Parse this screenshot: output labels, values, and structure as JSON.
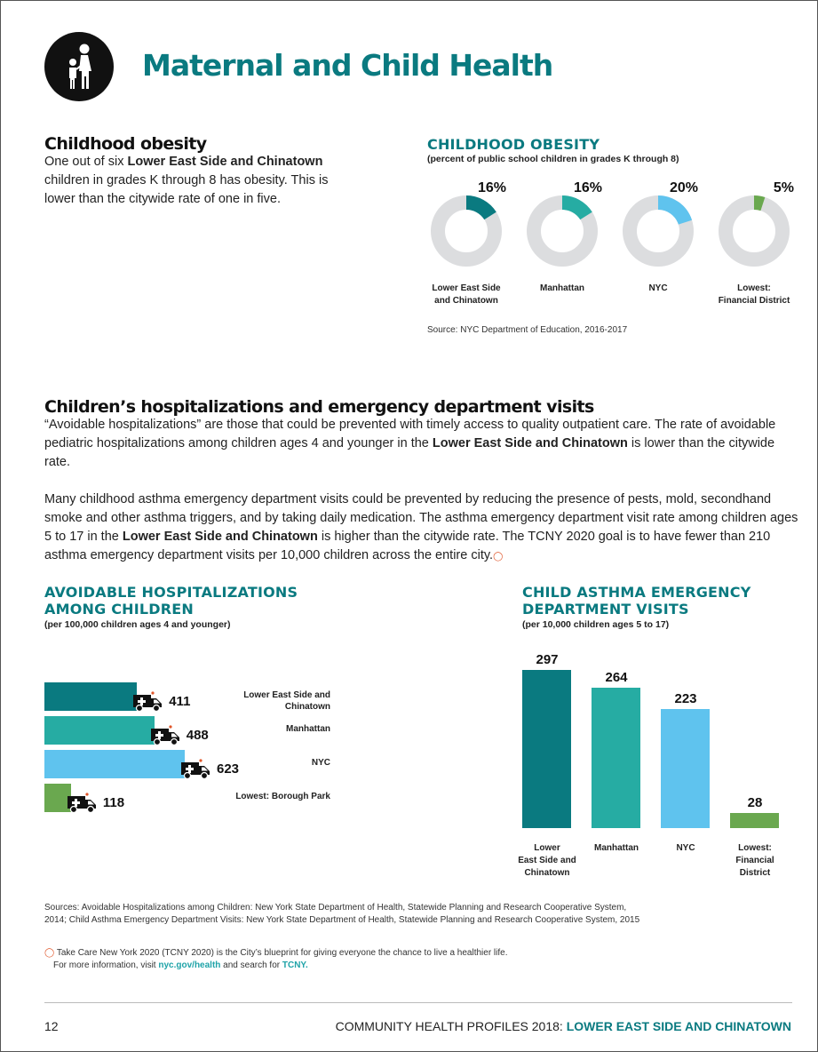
{
  "header": {
    "title": "Maternal and Child Health"
  },
  "obesity_section": {
    "heading": "Childhood obesity",
    "text_pre": "One out of six ",
    "text_bold": "Lower East Side and Chinatown",
    "text_post": " children in grades K through 8 has obesity. This is lower than the citywide rate of one in five."
  },
  "obesity_chart": {
    "title": "CHILDHOOD OBESITY",
    "subtitle": "(percent of public school children in grades K through 8)",
    "source": "Source: NYC Department of Education, 2016-2017",
    "labels": [
      [
        "Lower East Side",
        "and Chinatown"
      ],
      [
        "Manhattan"
      ],
      [
        "NYC"
      ],
      [
        "Lowest:",
        "Financial District"
      ]
    ]
  },
  "hosp_section": {
    "heading": "Children’s hospitalizations and emergency department visits",
    "p1_pre": "“Avoidable hospitalizations” are those that could be prevented with timely access to quality outpatient care. The rate of avoidable pediatric hospitalizations among children ages 4 and younger in the ",
    "p1_bold": "Lower East Side and Chinatown",
    "p1_post": " is lower than the citywide rate.",
    "p2_pre": "Many childhood asthma emergency department visits could be prevented by reducing the presence of pests, mold, secondhand smoke and other asthma triggers, and by taking daily medication. The asthma emergency department visit rate among children ages 5 to 17 in the ",
    "p2_bold": "Lower East Side and Chinatown",
    "p2_post": " is higher than the citywide rate. The TCNY 2020 goal is to have fewer than 210 asthma emergency department visits per 10,000 children across the entire city."
  },
  "hosp_chart": {
    "title_line1": "AVOIDABLE HOSPITALIZATIONS",
    "title_line2": "AMONG CHILDREN",
    "subtitle": "(per 100,000 children ages 4 and younger)",
    "labels": [
      [
        "Lower East Side and",
        "Chinatown"
      ],
      [
        "Manhattan"
      ],
      [
        "NYC"
      ],
      [
        "Lowest: Borough Park"
      ]
    ]
  },
  "asthma_chart": {
    "title_line1": "CHILD ASTHMA EMERGENCY",
    "title_line2": "DEPARTMENT VISITS",
    "subtitle": "(per 10,000 children ages 5 to 17)",
    "labels": [
      [
        "Lower",
        "East Side and",
        "Chinatown"
      ],
      [
        "Manhattan"
      ],
      [
        "NYC"
      ],
      [
        "Lowest:",
        "Financial",
        "District"
      ]
    ]
  },
  "sources": {
    "line1": "Sources: Avoidable Hospitalizations among Children: New York State Department of Health, Statewide Planning and Research Cooperative System,",
    "line2": "2014; Child Asthma Emergency Department Visits: New York State Department of Health, Statewide Planning and Research Cooperative System, 2015"
  },
  "tcny_note": {
    "line1": "Take Care New York 2020 (TCNY 2020) is the City’s blueprint for giving everyone the chance to live a healthier life.",
    "line2_pre": "For more information, visit ",
    "link1": "nyc.gov/health",
    "line2_mid": " and search for ",
    "link2": "TCNY."
  },
  "footer": {
    "page_number": "12",
    "left_text": "COMMUNITY HEALTH PROFILES 2018: ",
    "highlight": "LOWER EAST SIDE AND CHINATOWN"
  },
  "colors": {
    "local": "#0a7a80",
    "manhattan": "#26aca3",
    "nyc": "#5fc3ee",
    "lowest": "#6aa84f",
    "donut_bg": "#dcdddf"
  },
  "chart_data": [
    {
      "type": "pie",
      "title": "CHILDHOOD OBESITY",
      "subtitle": "(percent of public school children in grades K through 8)",
      "categories": [
        "Lower East Side and Chinatown",
        "Manhattan",
        "NYC",
        "Lowest: Financial District"
      ],
      "values": [
        16,
        16,
        20,
        5
      ],
      "value_labels": [
        "16%",
        "16%",
        "20%",
        "5%"
      ]
    },
    {
      "type": "bar",
      "orientation": "horizontal",
      "title": "AVOIDABLE HOSPITALIZATIONS AMONG CHILDREN",
      "subtitle": "(per 100,000 children ages 4 and younger)",
      "categories": [
        "Lower East Side and Chinatown",
        "Manhattan",
        "NYC",
        "Lowest: Borough Park"
      ],
      "values": [
        411,
        488,
        623,
        118
      ],
      "value_labels": [
        "411",
        "488",
        "623",
        "118"
      ]
    },
    {
      "type": "bar",
      "orientation": "vertical",
      "title": "CHILD ASTHMA EMERGENCY DEPARTMENT VISITS",
      "subtitle": "(per 10,000 children ages 5 to 17)",
      "categories": [
        "Lower East Side and Chinatown",
        "Manhattan",
        "NYC",
        "Lowest: Financial District"
      ],
      "values": [
        297,
        264,
        223,
        28
      ],
      "value_labels": [
        "297",
        "264",
        "223",
        "28"
      ]
    }
  ]
}
